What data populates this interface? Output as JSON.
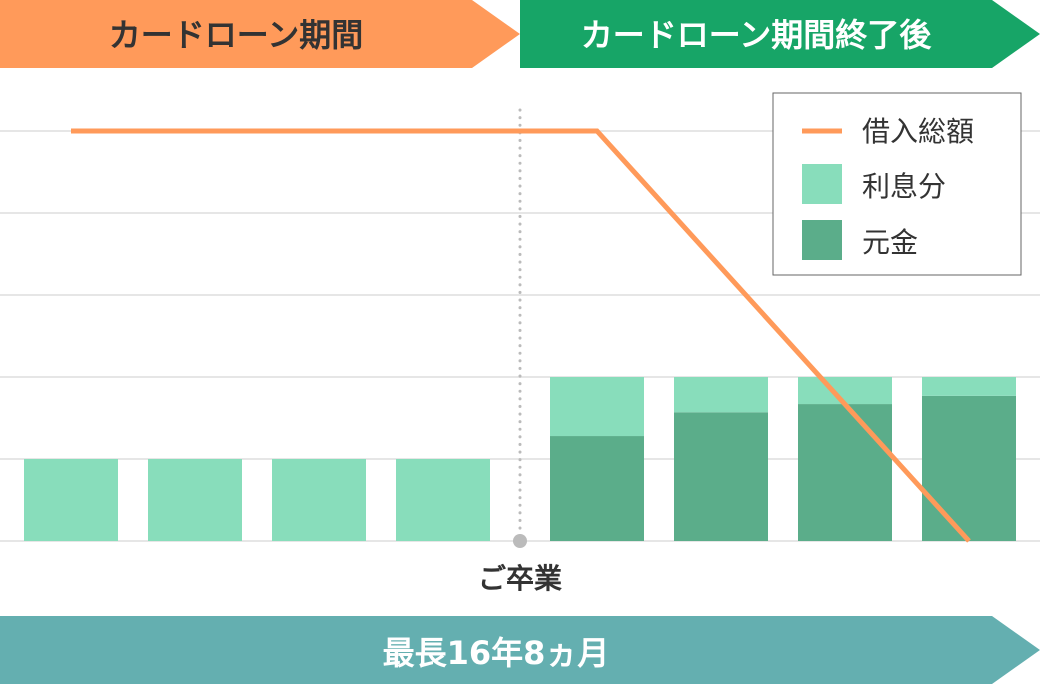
{
  "header": {
    "left_label": "カードローン期間",
    "right_label": "カードローン期間終了後",
    "left_color": "#FF9A5A",
    "right_color": "#17A567"
  },
  "footer": {
    "label": "最長16年8ヵ月",
    "color": "#64AFB0"
  },
  "chart_data": {
    "type": "bar",
    "stacked": true,
    "categories": [
      "1",
      "2",
      "3",
      "4",
      "5",
      "6",
      "7",
      "8"
    ],
    "category_labels_shown": false,
    "series": [
      {
        "name": "元金",
        "color": "#5BAD8A",
        "values": [
          0,
          0,
          0,
          0,
          1.28,
          1.57,
          1.67,
          1.77
        ]
      },
      {
        "name": "利息分",
        "color": "#88DDBB",
        "values": [
          1,
          1,
          1,
          1,
          0.72,
          0.43,
          0.33,
          0.23
        ]
      }
    ],
    "line": {
      "name": "借入総額",
      "color": "#FF9A5A",
      "points": [
        {
          "x": 1,
          "y": 5
        },
        {
          "x": 5,
          "y": 5
        },
        {
          "x": 8,
          "y": 0
        }
      ]
    },
    "ylim": [
      0,
      5
    ],
    "grid": true,
    "axis_ticks_shown": false,
    "legend_placement": "top-right",
    "annotation": {
      "label": "ご卒業",
      "position": "between categories 4 and 5",
      "style": "dotted vertical line"
    }
  }
}
